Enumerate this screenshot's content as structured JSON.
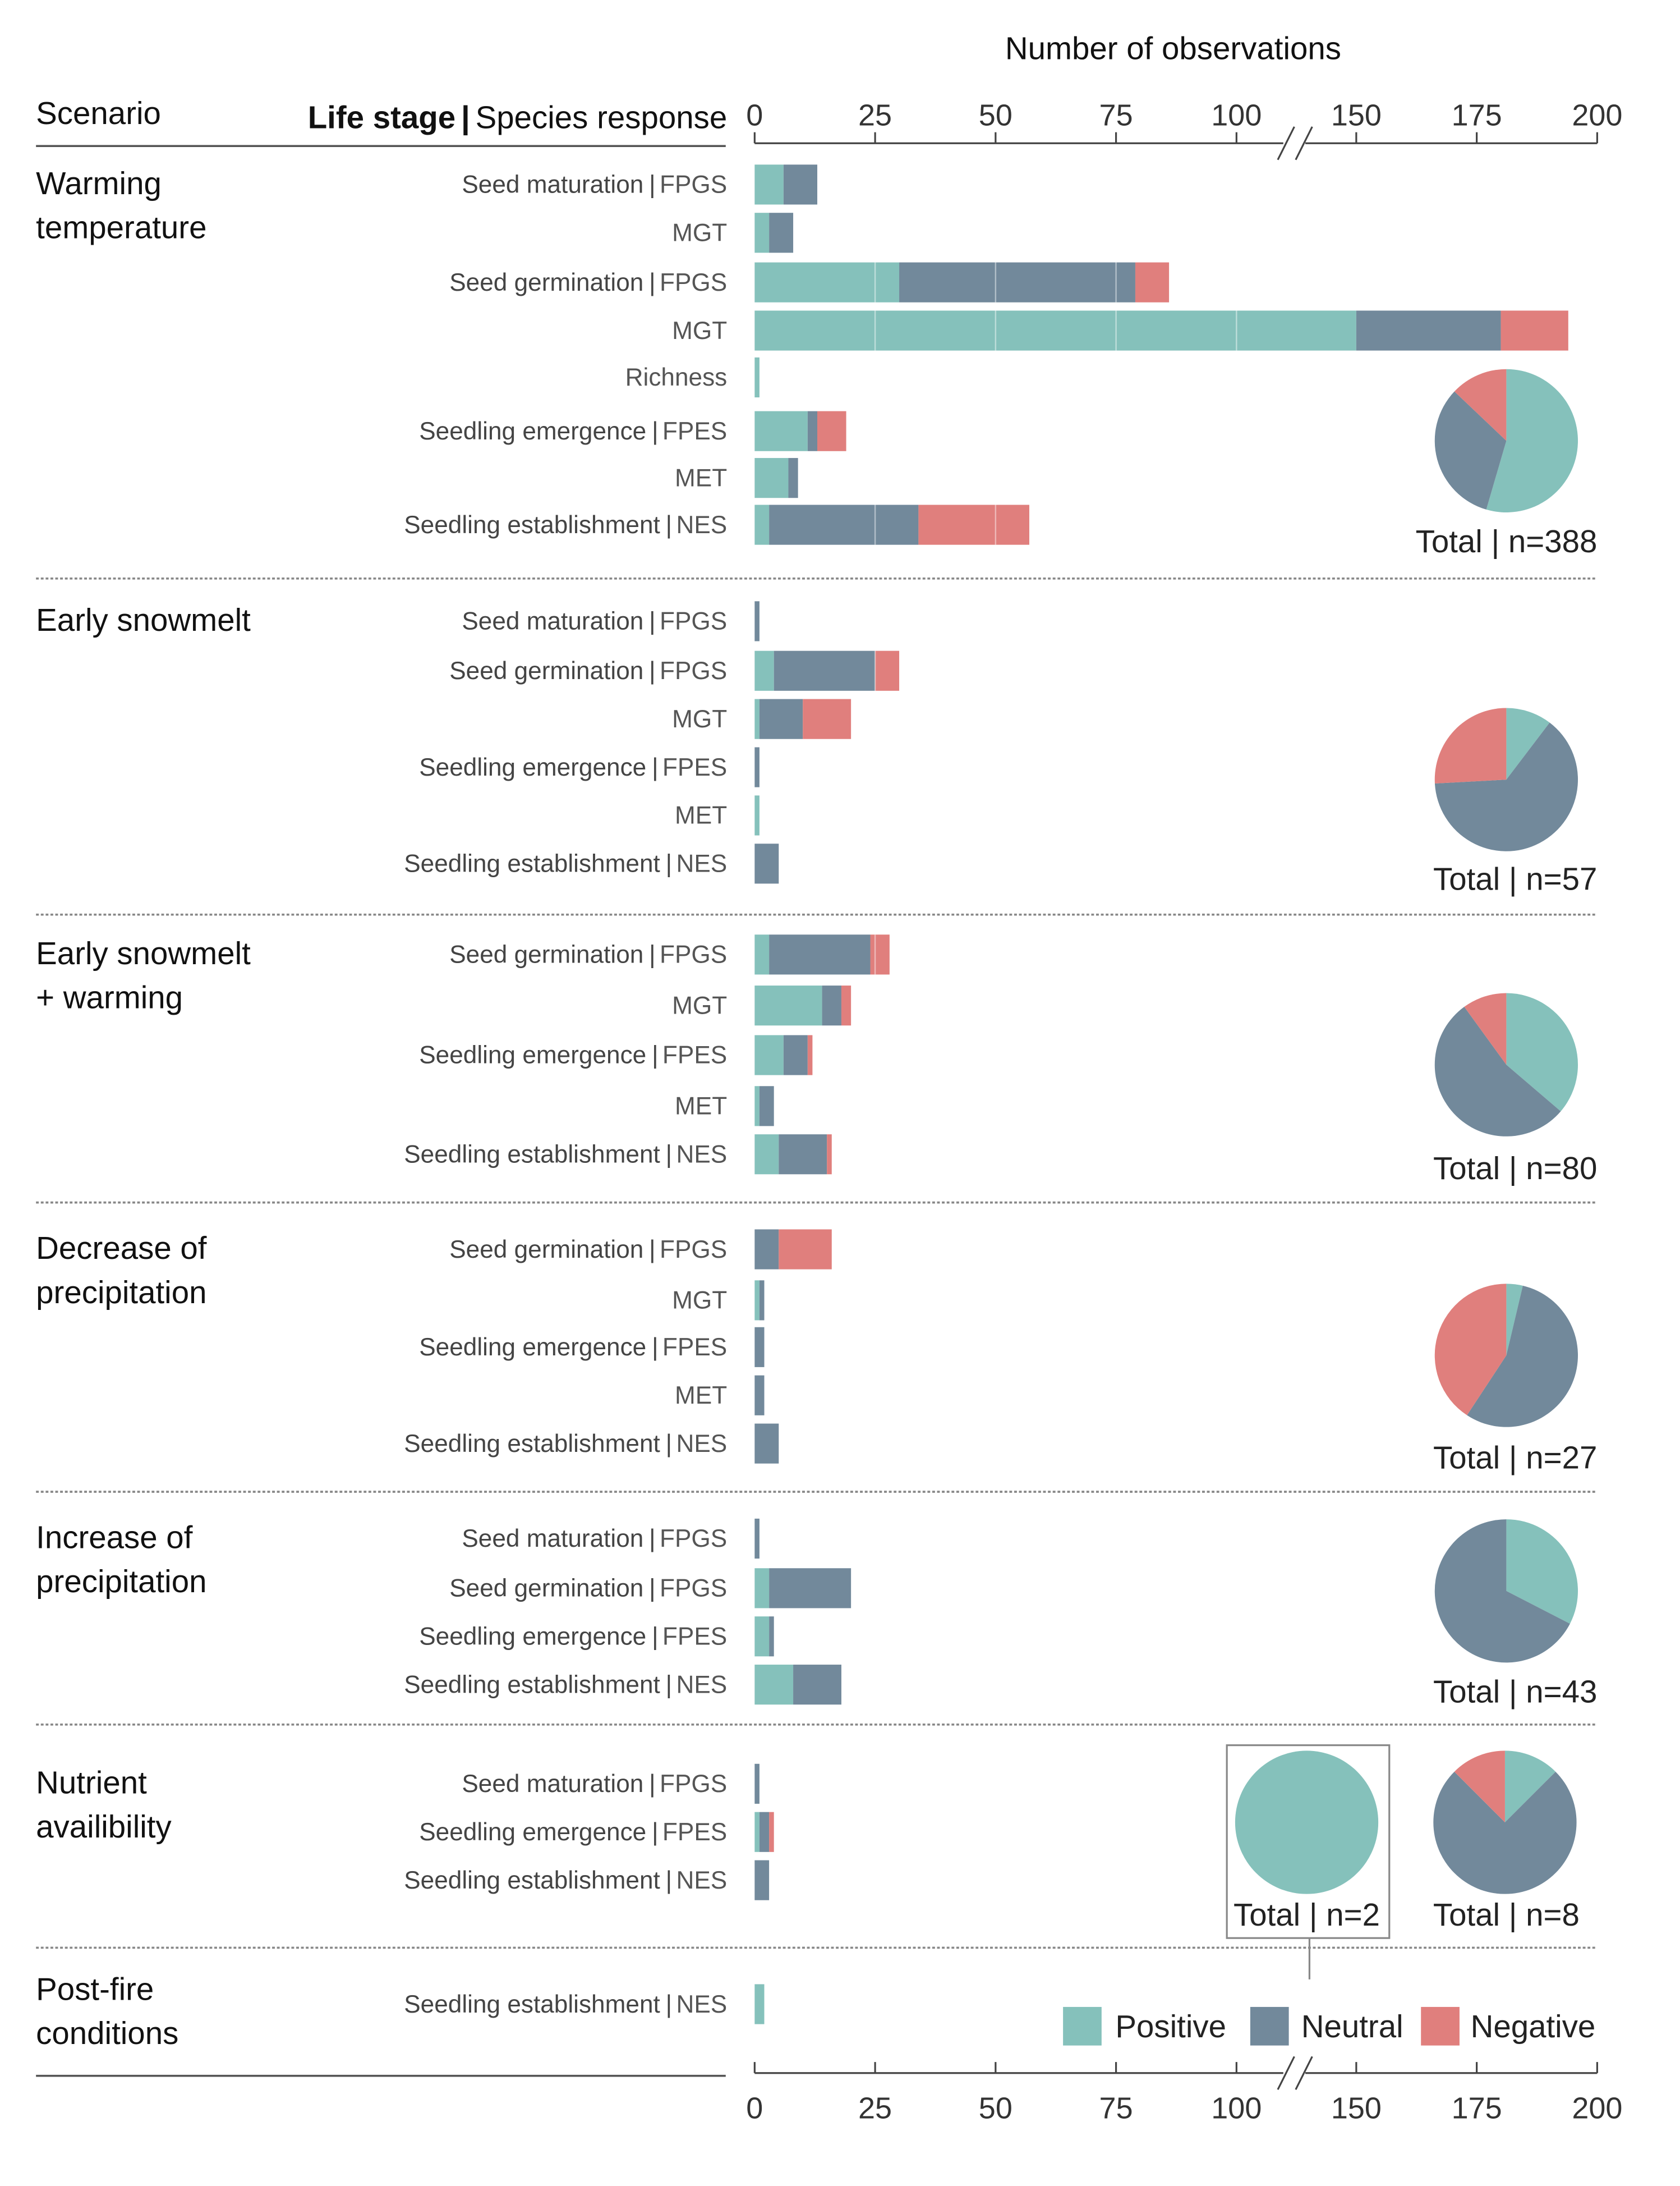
{
  "chart_data": {
    "type": "bar",
    "orientation": "horizontal",
    "stacked": true,
    "title": "Number of observations",
    "header_scenario": "Scenario",
    "header_lifestage": "Life stage",
    "header_sep": "|",
    "header_response": "Species response",
    "xlim": [
      0,
      200
    ],
    "axis_break": [
      100,
      150
    ],
    "xticks": [
      0,
      25,
      50,
      75,
      100,
      150,
      175,
      200
    ],
    "total_prefix": "Total | n=",
    "colors": {
      "Positive": "#85c1bb",
      "Neutral": "#72899b",
      "Negative": "#e07f7d"
    },
    "legend": [
      "Positive",
      "Neutral",
      "Negative"
    ],
    "legend_position": "bottom-right",
    "scenarios": [
      {
        "name": [
          "Warming",
          "temperature"
        ],
        "total": 388,
        "rows": [
          {
            "stage": "Seed maturation",
            "response": "FPGS",
            "values": [
              6,
              7,
              0
            ]
          },
          {
            "stage": "",
            "response": "MGT",
            "values": [
              3,
              5,
              0
            ]
          },
          {
            "stage": "Seed germination",
            "response": "FPGS",
            "values": [
              30,
              49,
              7
            ]
          },
          {
            "stage": "",
            "response": "MGT",
            "values": [
              150,
              30,
              14
            ]
          },
          {
            "stage": "",
            "response": "Richness",
            "values": [
              1,
              0,
              0
            ]
          },
          {
            "stage": "Seedling emergence",
            "response": "FPES",
            "values": [
              11,
              2,
              6
            ]
          },
          {
            "stage": "",
            "response": "MET",
            "values": [
              7,
              2,
              0
            ]
          },
          {
            "stage": "Seedling establishment",
            "response": "NES",
            "values": [
              3,
              31,
              23
            ]
          }
        ]
      },
      {
        "name": [
          "Early snowmelt"
        ],
        "total": 57,
        "rows": [
          {
            "stage": "Seed maturation",
            "response": "FPGS",
            "values": [
              0,
              1,
              0
            ]
          },
          {
            "stage": "Seed germination",
            "response": "FPGS",
            "values": [
              4,
              21,
              5
            ]
          },
          {
            "stage": "",
            "response": "MGT",
            "values": [
              1,
              9,
              10
            ]
          },
          {
            "stage": "Seedling emergence",
            "response": "FPES",
            "values": [
              0,
              1,
              0
            ]
          },
          {
            "stage": "",
            "response": "MET",
            "values": [
              1,
              0,
              0
            ]
          },
          {
            "stage": "Seedling establishment",
            "response": "NES",
            "values": [
              0,
              5,
              0
            ]
          }
        ]
      },
      {
        "name": [
          "Early snowmelt",
          "+ warming"
        ],
        "total": 80,
        "rows": [
          {
            "stage": "Seed germination",
            "response": "FPGS",
            "values": [
              3,
              21,
              4
            ]
          },
          {
            "stage": "",
            "response": "MGT",
            "values": [
              14,
              4,
              2
            ]
          },
          {
            "stage": "Seedling emergence",
            "response": "FPES",
            "values": [
              6,
              5,
              1
            ]
          },
          {
            "stage": "",
            "response": "MET",
            "values": [
              1,
              3,
              0
            ]
          },
          {
            "stage": "Seedling establishment",
            "response": "NES",
            "values": [
              5,
              10,
              1
            ]
          }
        ]
      },
      {
        "name": [
          "Decrease of",
          "precipitation"
        ],
        "total": 27,
        "rows": [
          {
            "stage": "Seed germination",
            "response": "FPGS",
            "values": [
              0,
              5,
              11
            ]
          },
          {
            "stage": "",
            "response": "MGT",
            "values": [
              1,
              1,
              0
            ]
          },
          {
            "stage": "Seedling emergence",
            "response": "FPES",
            "values": [
              0,
              2,
              0
            ]
          },
          {
            "stage": "",
            "response": "MET",
            "values": [
              0,
              2,
              0
            ]
          },
          {
            "stage": "Seedling establishment",
            "response": "NES",
            "values": [
              0,
              5,
              0
            ]
          }
        ]
      },
      {
        "name": [
          "Increase of",
          "precipitation"
        ],
        "total": 43,
        "rows": [
          {
            "stage": "Seed maturation",
            "response": "FPGS",
            "values": [
              0,
              1,
              0
            ]
          },
          {
            "stage": "Seed germination",
            "response": "FPGS",
            "values": [
              3,
              17,
              0
            ]
          },
          {
            "stage": "Seedling emergence",
            "response": "FPES",
            "values": [
              3,
              1,
              0
            ]
          },
          {
            "stage": "Seedling establishment",
            "response": "NES",
            "values": [
              8,
              10,
              0
            ]
          }
        ]
      },
      {
        "name": [
          "Nutrient",
          "availibility"
        ],
        "total": 8,
        "rows": [
          {
            "stage": "Seed maturation",
            "response": "FPGS",
            "values": [
              0,
              1,
              0
            ]
          },
          {
            "stage": "Seedling emergence",
            "response": "FPES",
            "values": [
              1,
              2,
              1
            ]
          },
          {
            "stage": "Seedling establishment",
            "response": "NES",
            "values": [
              0,
              3,
              0
            ]
          }
        ]
      },
      {
        "name": [
          "Post-fire",
          "conditions"
        ],
        "total": 2,
        "rows": [
          {
            "stage": "Seedling establishment",
            "response": "NES",
            "values": [
              2,
              0,
              0
            ]
          }
        ]
      }
    ]
  }
}
